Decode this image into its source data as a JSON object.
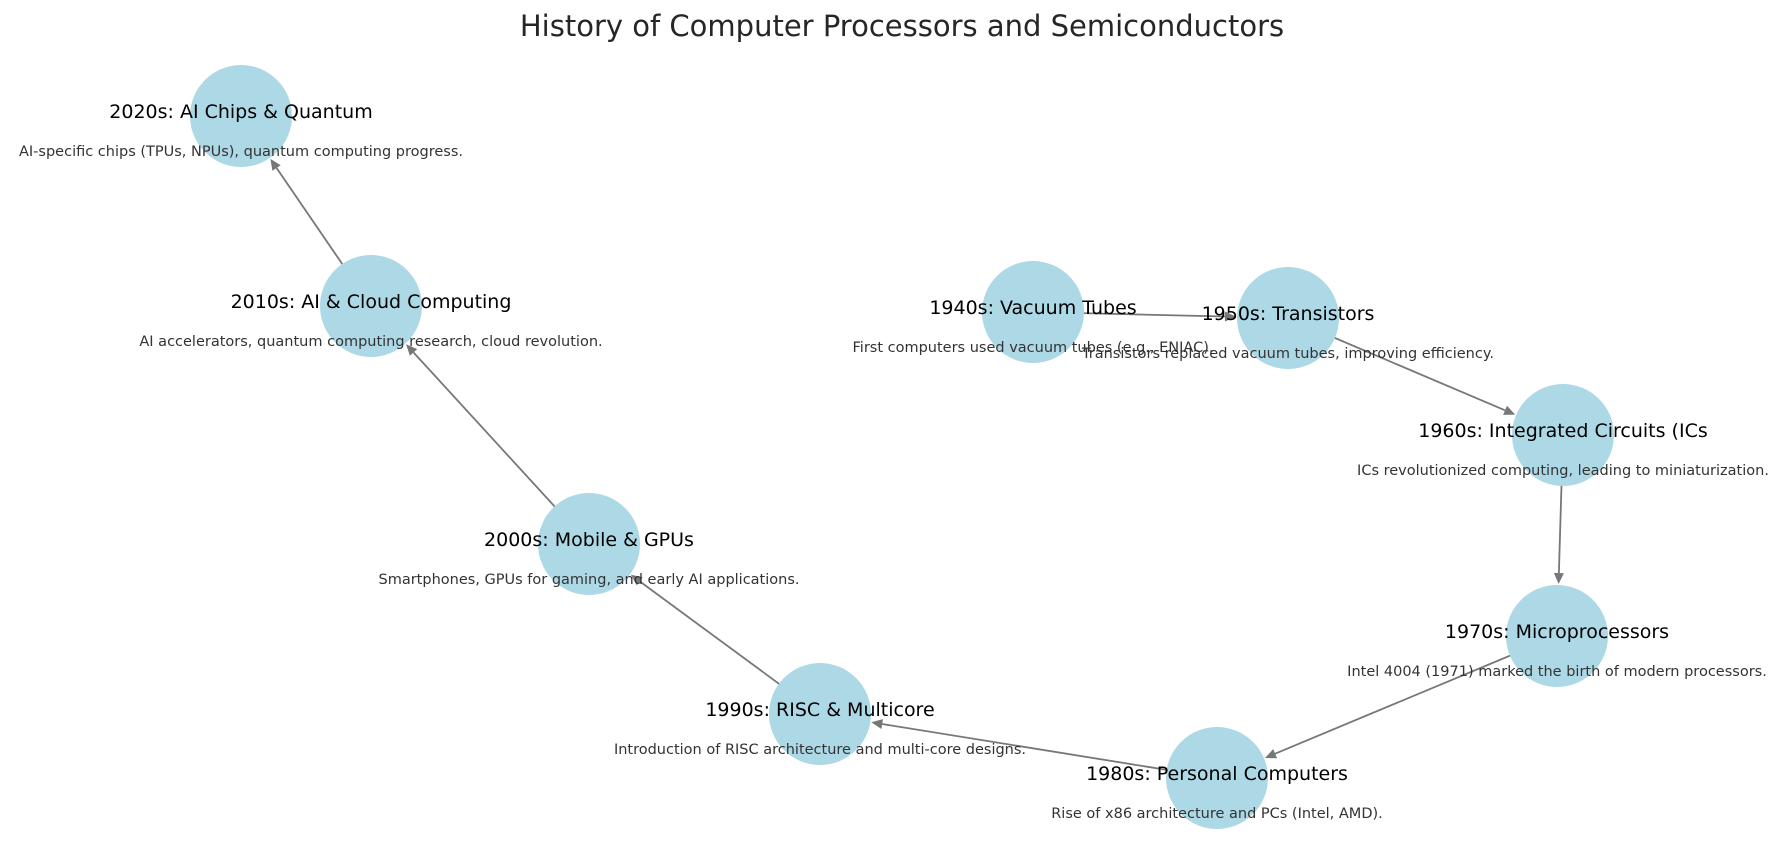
{
  "title": "History of Computer Processors and Semiconductors",
  "colors": {
    "node_fill": "#add8e6",
    "edge": "#777777",
    "title": "#262626",
    "label": "#000000",
    "description": "#333333",
    "background": "#ffffff"
  },
  "nodes": [
    {
      "id": "1940s",
      "label": "1940s: Vacuum Tubes",
      "description": "First computers used vacuum tubes (e.g., ENIAC)."
    },
    {
      "id": "1950s",
      "label": "1950s: Transistors",
      "description": "Transistors replaced vacuum tubes, improving efficiency."
    },
    {
      "id": "1960s",
      "label": "1960s: Integrated Circuits (ICs",
      "description": "ICs revolutionized computing, leading to miniaturization."
    },
    {
      "id": "1970s",
      "label": "1970s: Microprocessors",
      "description": "Intel 4004 (1971) marked the birth of modern processors."
    },
    {
      "id": "1980s",
      "label": "1980s: Personal Computers",
      "description": "Rise of x86 architecture and PCs (Intel, AMD)."
    },
    {
      "id": "1990s",
      "label": "1990s: RISC & Multicore",
      "description": "Introduction of RISC architecture and multi-core designs."
    },
    {
      "id": "2000s",
      "label": "2000s: Mobile & GPUs",
      "description": "Smartphones, GPUs for gaming, and early AI applications."
    },
    {
      "id": "2010s",
      "label": "2010s: AI & Cloud Computing",
      "description": "AI accelerators, quantum computing research, cloud revolution."
    },
    {
      "id": "2020s",
      "label": "2020s: AI Chips & Quantum",
      "description": "AI-specific chips (TPUs, NPUs), quantum computing progress."
    }
  ],
  "edges": [
    {
      "from": "1940s",
      "to": "1950s"
    },
    {
      "from": "1950s",
      "to": "1960s"
    },
    {
      "from": "1960s",
      "to": "1970s"
    },
    {
      "from": "1970s",
      "to": "1980s"
    },
    {
      "from": "1980s",
      "to": "1990s"
    },
    {
      "from": "1990s",
      "to": "2000s"
    },
    {
      "from": "2000s",
      "to": "2010s"
    },
    {
      "from": "2010s",
      "to": "2020s"
    }
  ]
}
